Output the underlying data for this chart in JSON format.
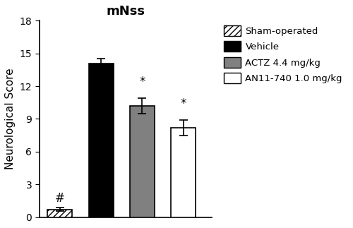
{
  "categories": [
    "Sham-operated",
    "Vehicle",
    "ACTZ 4.4 mg/kg",
    "AN11-740 1.0 mg/kg"
  ],
  "means": [
    0.7,
    14.1,
    10.2,
    8.2
  ],
  "sems": [
    0.15,
    0.45,
    0.7,
    0.7
  ],
  "bar_colors": [
    "white",
    "black",
    "#808080",
    "white"
  ],
  "bar_hatches": [
    "////",
    "",
    "",
    ""
  ],
  "bar_edgecolors": [
    "black",
    "black",
    "black",
    "black"
  ],
  "title": "mNss",
  "ylabel": "Neurological Score",
  "ylim": [
    0,
    18
  ],
  "yticks": [
    0,
    3,
    6,
    9,
    12,
    15,
    18
  ],
  "annotations": [
    "#",
    "",
    "*",
    "*"
  ],
  "annotation_offsets": [
    0.3,
    0,
    0.9,
    0.9
  ],
  "legend_labels": [
    "Sham-operated",
    "Vehicle",
    "ACTZ 4.4 mg/kg",
    "AN11-740 1.0 mg/kg"
  ],
  "legend_colors": [
    "white",
    "black",
    "#808080",
    "white"
  ],
  "legend_hatches": [
    "////",
    "",
    "",
    ""
  ],
  "figsize": [
    5.0,
    3.23
  ],
  "dpi": 100,
  "bar_width": 0.6,
  "x_positions": [
    1,
    2,
    3,
    4
  ],
  "title_fontsize": 13,
  "axis_fontsize": 11,
  "tick_fontsize": 10,
  "annot_fontsize": 12
}
